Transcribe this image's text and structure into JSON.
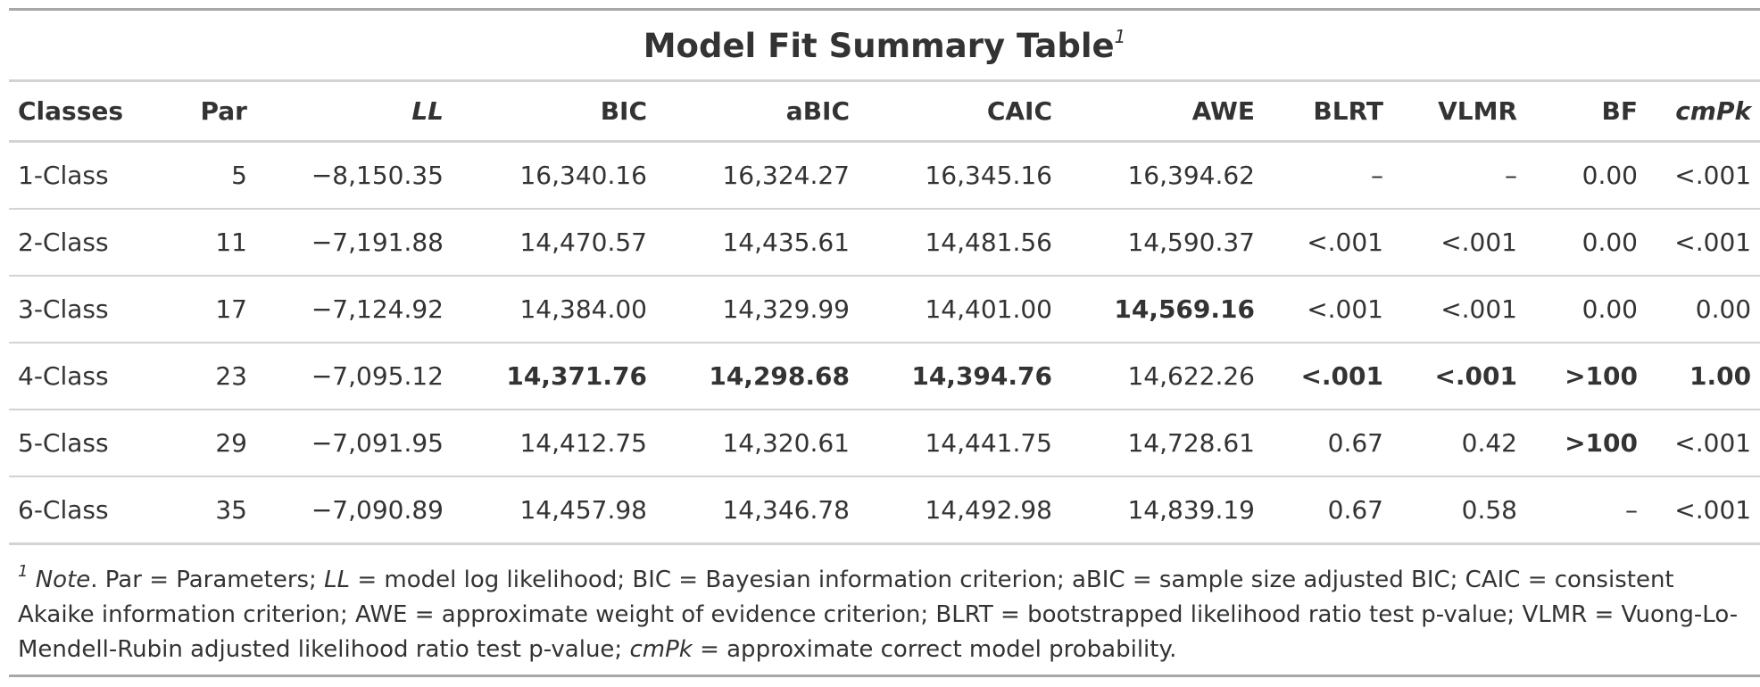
{
  "title": "Model Fit Summary Table",
  "title_footnote_marker": "1",
  "columns": {
    "classes": "Classes",
    "par": "Par",
    "ll": "LL",
    "bic": "BIC",
    "abic": "aBIC",
    "caic": "CAIC",
    "awe": "AWE",
    "blrt": "BLRT",
    "vlmr": "VLMR",
    "bf": "BF",
    "cmpk": "cmPk"
  },
  "rows": [
    {
      "classes": "1-Class",
      "par": "5",
      "ll": "−8,150.35",
      "bic": "16,340.16",
      "abic": "16,324.27",
      "caic": "16,345.16",
      "awe": "16,394.62",
      "blrt": "–",
      "vlmr": "–",
      "bf": "0.00",
      "cmpk": "<.001"
    },
    {
      "classes": "2-Class",
      "par": "11",
      "ll": "−7,191.88",
      "bic": "14,470.57",
      "abic": "14,435.61",
      "caic": "14,481.56",
      "awe": "14,590.37",
      "blrt": "<.001",
      "vlmr": "<.001",
      "bf": "0.00",
      "cmpk": "<.001"
    },
    {
      "classes": "3-Class",
      "par": "17",
      "ll": "−7,124.92",
      "bic": "14,384.00",
      "abic": "14,329.99",
      "caic": "14,401.00",
      "awe": "14,569.16",
      "blrt": "<.001",
      "vlmr": "<.001",
      "bf": "0.00",
      "cmpk": "0.00"
    },
    {
      "classes": "4-Class",
      "par": "23",
      "ll": "−7,095.12",
      "bic": "14,371.76",
      "abic": "14,298.68",
      "caic": "14,394.76",
      "awe": "14,622.26",
      "blrt": "<.001",
      "vlmr": "<.001",
      "bf": ">100",
      "cmpk": "1.00"
    },
    {
      "classes": "5-Class",
      "par": "29",
      "ll": "−7,091.95",
      "bic": "14,412.75",
      "abic": "14,320.61",
      "caic": "14,441.75",
      "awe": "14,728.61",
      "blrt": "0.67",
      "vlmr": "0.42",
      "bf": ">100",
      "cmpk": "<.001"
    },
    {
      "classes": "6-Class",
      "par": "35",
      "ll": "−7,090.89",
      "bic": "14,457.98",
      "abic": "14,346.78",
      "caic": "14,492.98",
      "awe": "14,839.19",
      "blrt": "0.67",
      "vlmr": "0.58",
      "bf": "–",
      "cmpk": "<.001"
    }
  ],
  "footnote": {
    "marker": "1",
    "note_label": "Note",
    "seg1": ". Par = Parameters; ",
    "ll_term": "LL",
    "seg2": " = model log likelihood; BIC = Bayesian information criterion; aBIC = sample size adjusted BIC; CAIC = consistent Akaike information criterion; AWE = approximate weight of evidence criterion; BLRT = bootstrapped likelihood ratio test p-value; VLMR = Vuong-Lo-Mendell-Rubin adjusted likelihood ratio test p-value; ",
    "cmpk_term": "cmPk",
    "seg3": " = approximate correct model probability."
  }
}
